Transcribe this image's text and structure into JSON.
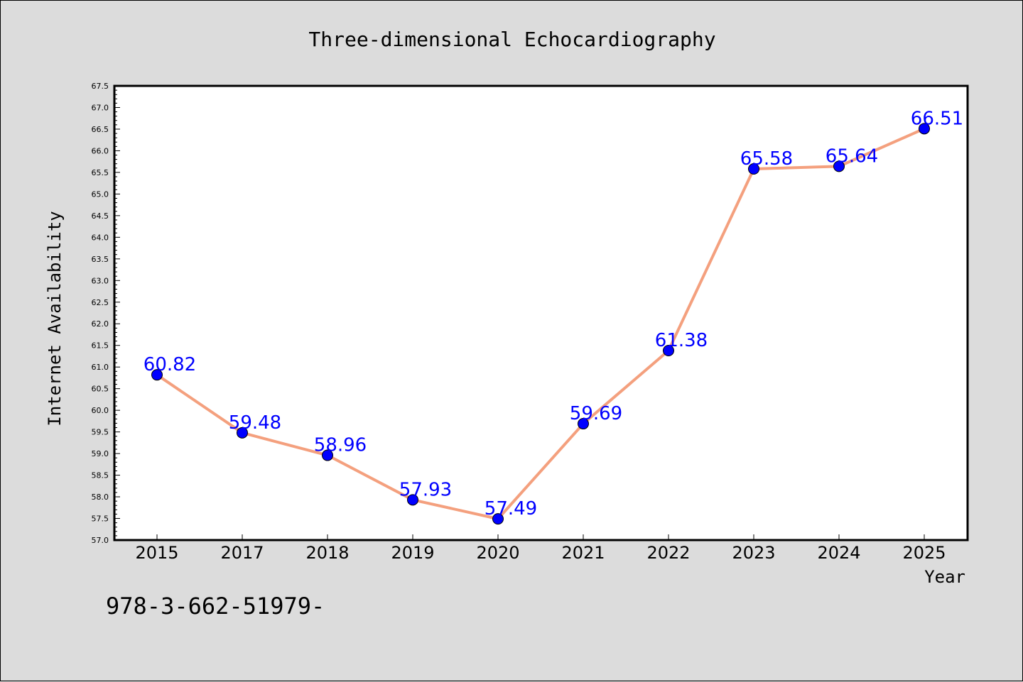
{
  "chart_data": {
    "type": "line",
    "title": "Three-dimensional Echocardiography",
    "xlabel": "Year",
    "ylabel": "Internet Availability",
    "categories": [
      "2015",
      "2017",
      "2018",
      "2019",
      "2020",
      "2021",
      "2022",
      "2023",
      "2024",
      "2025"
    ],
    "series": [
      {
        "values": [
          60.82,
          59.48,
          58.96,
          57.93,
          57.49,
          59.69,
          61.38,
          65.58,
          65.64,
          66.51
        ],
        "data_labels": [
          "60.82",
          "59.48",
          "58.96",
          "57.93",
          "57.49",
          "59.69",
          "61.38",
          "65.58",
          "65.64",
          "66.51"
        ],
        "line_color": "#f4a07e",
        "marker_color": "#0000ff"
      }
    ],
    "ylim": [
      57.0,
      67.5
    ],
    "yticks": [
      "57.0",
      "57.5",
      "58.0",
      "58.5",
      "59.0",
      "59.5",
      "60.0",
      "60.5",
      "61.0",
      "61.5",
      "62.0",
      "62.5",
      "63.0",
      "63.5",
      "64.0",
      "64.5",
      "65.0",
      "65.5",
      "66.0",
      "66.5",
      "67.0",
      "67.5"
    ],
    "grid": false,
    "legend": false
  },
  "footnote": "978-3-662-51979-",
  "colors": {
    "background": "#dcdcdc",
    "plot_area": "#ffffff",
    "label_color": "#0000ff"
  }
}
